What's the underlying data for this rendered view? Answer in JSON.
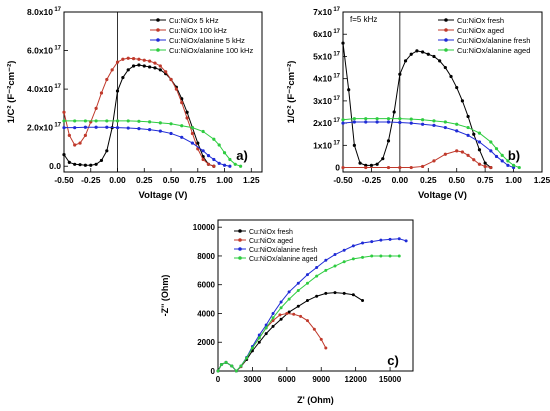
{
  "chart_data": [
    {
      "id": "a",
      "type": "line",
      "panel_label": "a)",
      "xlabel": "Voltage (V)",
      "ylabel": "1/C² (F⁻²cm⁻²)",
      "xlim": [
        -0.5,
        1.35
      ],
      "ylim": [
        -3e+16,
        8e+17
      ],
      "x_ticks": [
        -0.5,
        -0.25,
        0.0,
        0.25,
        0.5,
        0.75,
        1.0,
        1.25
      ],
      "x_tick_labels": [
        "-0.50",
        "-0.25",
        "0.00",
        "0.25",
        "0.50",
        "0.75",
        "1.00",
        "1.25"
      ],
      "y_ticks": [
        0.0,
        2e+17,
        4e+17,
        6e+17,
        8e+17
      ],
      "y_tick_labels": [
        "0.0",
        "2.0x10",
        "4.0x10",
        "6.0x10",
        "8.0x10"
      ],
      "y_tick_exps": [
        "",
        "17",
        "17",
        "17",
        "17"
      ],
      "legend_position": "top-center",
      "series": [
        {
          "name": "Cu:NiOx 5 kHz",
          "color": "#000000",
          "x": [
            -0.5,
            -0.45,
            -0.4,
            -0.35,
            -0.3,
            -0.25,
            -0.2,
            -0.15,
            -0.1,
            -0.05,
            0.0,
            0.05,
            0.1,
            0.15,
            0.2,
            0.25,
            0.3,
            0.35,
            0.4,
            0.45,
            0.5,
            0.55,
            0.6,
            0.65,
            0.7,
            0.75,
            0.8,
            0.85,
            0.9
          ],
          "y": [
            6e+16,
            2e+16,
            1e+16,
            8000000000000000.0,
            5000000000000000.0,
            5000000000000000.0,
            1e+16,
            3e+16,
            8e+16,
            2e+17,
            3.9e+17,
            4.6e+17,
            5e+17,
            5.2e+17,
            5.25e+17,
            5.2e+17,
            5.15e+17,
            5.1e+17,
            5e+17,
            4.8e+17,
            4.5e+17,
            4.1e+17,
            3.5e+17,
            2.8e+17,
            2e+17,
            1.2e+17,
            5e+16,
            1e+16,
            0.0
          ]
        },
        {
          "name": "Cu:NiOx 100 kHz",
          "color": "#c0392b",
          "x": [
            -0.5,
            -0.45,
            -0.4,
            -0.35,
            -0.3,
            -0.25,
            -0.2,
            -0.15,
            -0.1,
            -0.05,
            0.0,
            0.05,
            0.1,
            0.15,
            0.2,
            0.25,
            0.3,
            0.35,
            0.4,
            0.45,
            0.5,
            0.55,
            0.6,
            0.65,
            0.7,
            0.75,
            0.8,
            0.85,
            0.9
          ],
          "y": [
            2.8e+17,
            1.6e+17,
            1.1e+17,
            1.2e+17,
            1.6e+17,
            2.3e+17,
            3e+17,
            3.8e+17,
            4.5e+17,
            5e+17,
            5.4e+17,
            5.55e+17,
            5.6e+17,
            5.58e+17,
            5.55e+17,
            5.5e+17,
            5.45e+17,
            5.35e+17,
            5.2e+17,
            4.9e+17,
            4.5e+17,
            4e+17,
            3.3e+17,
            2.5e+17,
            1.7e+17,
            9e+16,
            3.5e+16,
            1e+16,
            0.0
          ]
        },
        {
          "name": "Cu:NiOx/alanine 5 kHz",
          "color": "#1f2bd6",
          "x": [
            -0.5,
            -0.4,
            -0.3,
            -0.2,
            -0.1,
            0.0,
            0.1,
            0.2,
            0.3,
            0.4,
            0.5,
            0.6,
            0.7,
            0.8,
            0.85,
            0.9,
            0.95,
            1.0,
            1.05
          ],
          "y": [
            2e+17,
            2e+17,
            2.02e+17,
            2.02e+17,
            2.02e+17,
            2e+17,
            1.98e+17,
            1.95e+17,
            1.9e+17,
            1.82e+17,
            1.7e+17,
            1.5e+17,
            1.2e+17,
            8e+16,
            5.5e+16,
            3.5e+16,
            1.5e+16,
            5000000000000000.0,
            0.0
          ]
        },
        {
          "name": "Cu:NiOx/alanine 100 kHz",
          "color": "#2ecc40",
          "x": [
            -0.5,
            -0.4,
            -0.3,
            -0.2,
            -0.1,
            0.0,
            0.1,
            0.2,
            0.3,
            0.4,
            0.5,
            0.6,
            0.7,
            0.8,
            0.9,
            0.95,
            1.0,
            1.05,
            1.1,
            1.15
          ],
          "y": [
            2.35e+17,
            2.35e+17,
            2.35e+17,
            2.35e+17,
            2.35e+17,
            2.35e+17,
            2.35e+17,
            2.33e+17,
            2.3e+17,
            2.25e+17,
            2.2e+17,
            2.1e+17,
            2e+17,
            1.8e+17,
            1.4e+17,
            1.1e+17,
            7e+16,
            3.5e+16,
            1e+16,
            0.0
          ]
        }
      ]
    },
    {
      "id": "b",
      "type": "line",
      "panel_label": "b)",
      "annotation": "f=5 kHz",
      "xlabel": "Voltage (V)",
      "ylabel": "1/C² (F⁻²cm⁻²)",
      "xlim": [
        -0.5,
        1.25
      ],
      "ylim": [
        -2e+16,
        7e+17
      ],
      "x_ticks": [
        -0.5,
        -0.25,
        0.0,
        0.25,
        0.5,
        0.75,
        1.0,
        1.25
      ],
      "x_tick_labels": [
        "-0.50",
        "-0.25",
        "0.00",
        "0.25",
        "0.50",
        "0.75",
        "1.00",
        "1.25"
      ],
      "y_ticks": [
        0,
        1e+17,
        2e+17,
        3e+17,
        4e+17,
        5e+17,
        6e+17,
        7e+17
      ],
      "y_tick_labels": [
        "0",
        "1x10",
        "2x10",
        "3x10",
        "4x10",
        "5x10",
        "6x10",
        "7x10"
      ],
      "y_tick_exps": [
        "",
        "17",
        "17",
        "17",
        "17",
        "17",
        "17",
        "17"
      ],
      "legend_position": "top-center",
      "series": [
        {
          "name": "Cu:NiOx fresh",
          "color": "#000000",
          "x": [
            -0.5,
            -0.45,
            -0.4,
            -0.35,
            -0.3,
            -0.25,
            -0.2,
            -0.15,
            -0.1,
            -0.05,
            0.0,
            0.05,
            0.1,
            0.15,
            0.2,
            0.25,
            0.3,
            0.35,
            0.4,
            0.45,
            0.5,
            0.55,
            0.6,
            0.65,
            0.7,
            0.75,
            0.8
          ],
          "y": [
            5.6e+17,
            3.5e+17,
            1e+17,
            2e+16,
            1e+16,
            1e+16,
            1.5e+16,
            4e+16,
            1.2e+17,
            2.5e+17,
            4.2e+17,
            4.8e+17,
            5.1e+17,
            5.25e+17,
            5.2e+17,
            5.1e+17,
            5e+17,
            4.8e+17,
            4.5e+17,
            4.1e+17,
            3.6e+17,
            3e+17,
            2.3e+17,
            1.5e+17,
            8e+16,
            2e+16,
            0.0
          ]
        },
        {
          "name": "Cu:NiOx aged",
          "color": "#c0392b",
          "x": [
            -0.5,
            -0.3,
            -0.1,
            0.0,
            0.1,
            0.2,
            0.3,
            0.4,
            0.5,
            0.55,
            0.6,
            0.65,
            0.7,
            0.75,
            0.8
          ],
          "y": [
            0.0,
            0.0,
            0.0,
            0.0,
            0.0,
            5000000000000000.0,
            3e+16,
            6e+16,
            7.5e+16,
            7e+16,
            5.5e+16,
            3.5e+16,
            1.5e+16,
            5000000000000000.0,
            0.0
          ]
        },
        {
          "name": "Cu:NiOx/alanine fresh",
          "color": "#1f2bd6",
          "x": [
            -0.5,
            -0.4,
            -0.3,
            -0.2,
            -0.1,
            0.0,
            0.1,
            0.2,
            0.3,
            0.4,
            0.5,
            0.6,
            0.7,
            0.8,
            0.85,
            0.9,
            0.95,
            1.0
          ],
          "y": [
            2e+17,
            2.05e+17,
            2.05e+17,
            2.05e+17,
            2.05e+17,
            2.03e+17,
            2e+17,
            1.95e+17,
            1.9e+17,
            1.8e+17,
            1.65e+17,
            1.45e+17,
            1.15e+17,
            7.5e+16,
            5e+16,
            3e+16,
            1e+16,
            0.0
          ]
        },
        {
          "name": "Cu:NiOx/alanine aged",
          "color": "#2ecc40",
          "x": [
            -0.5,
            -0.4,
            -0.3,
            -0.2,
            -0.1,
            0.0,
            0.1,
            0.2,
            0.3,
            0.4,
            0.5,
            0.6,
            0.7,
            0.8,
            0.85,
            0.9,
            0.95,
            1.0,
            1.05
          ],
          "y": [
            2.15e+17,
            2.2e+17,
            2.2e+17,
            2.2e+17,
            2.2e+17,
            2.2e+17,
            2.18e+17,
            2.15e+17,
            2.1e+17,
            2.05e+17,
            1.95e+17,
            1.8e+17,
            1.55e+17,
            1.15e+17,
            8.5e+16,
            5.5e+16,
            3e+16,
            1e+16,
            0.0
          ]
        }
      ]
    },
    {
      "id": "c",
      "type": "scatter",
      "panel_label": "c)",
      "xlabel": "Z' (Ohm)",
      "ylabel": "-Z'' (Ohm)",
      "xlim": [
        0,
        17000
      ],
      "ylim": [
        0,
        10500
      ],
      "x_ticks": [
        0,
        3000,
        6000,
        9000,
        12000,
        15000
      ],
      "x_tick_labels": [
        "0",
        "3000",
        "6000",
        "9000",
        "12000",
        "15000"
      ],
      "y_ticks": [
        0,
        2000,
        4000,
        6000,
        8000,
        10000
      ],
      "y_tick_labels": [
        "0",
        "2000",
        "4000",
        "6000",
        "8000",
        "10000"
      ],
      "legend_position": "top-left",
      "series": [
        {
          "name": "Cu:NiOx fresh",
          "color": "#000000",
          "x": [
            0,
            300,
            700,
            1200,
            1600,
            2000,
            2500,
            3000,
            3600,
            4200,
            4800,
            5500,
            6200,
            7000,
            7800,
            8600,
            9400,
            10200,
            11000,
            11800,
            12600
          ],
          "y": [
            0,
            450,
            600,
            350,
            0,
            300,
            800,
            1400,
            2000,
            2600,
            3100,
            3600,
            4100,
            4500,
            4900,
            5200,
            5400,
            5450,
            5400,
            5300,
            4900
          ]
        },
        {
          "name": "Cu:NiOx aged",
          "color": "#c0392b",
          "x": [
            0,
            300,
            700,
            1200,
            1600,
            2000,
            2500,
            3000,
            3600,
            4200,
            4800,
            5400,
            6000,
            6600,
            7200,
            7800,
            8400,
            9000,
            9400
          ],
          "y": [
            0,
            450,
            600,
            350,
            0,
            300,
            900,
            1600,
            2300,
            3000,
            3500,
            3900,
            4000,
            3950,
            3800,
            3500,
            2900,
            2200,
            1600
          ]
        },
        {
          "name": "Cu:NiOx/alanine fresh",
          "color": "#1f2bd6",
          "x": [
            0,
            300,
            700,
            1200,
            1600,
            2000,
            2500,
            3000,
            3600,
            4200,
            4800,
            5500,
            6200,
            7000,
            7800,
            8600,
            9400,
            10200,
            11000,
            11800,
            12600,
            13400,
            14200,
            15000,
            15800,
            16400
          ],
          "y": [
            0,
            450,
            600,
            350,
            0,
            350,
            950,
            1700,
            2500,
            3200,
            4000,
            4800,
            5500,
            6100,
            6700,
            7200,
            7700,
            8100,
            8400,
            8700,
            8900,
            9000,
            9100,
            9150,
            9200,
            9050
          ]
        },
        {
          "name": "Cu:NiOx/alanine aged",
          "color": "#2ecc40",
          "x": [
            0,
            300,
            700,
            1200,
            1600,
            2000,
            2500,
            3000,
            3600,
            4200,
            4800,
            5500,
            6200,
            7000,
            7800,
            8600,
            9400,
            10200,
            11000,
            11800,
            12600,
            13400,
            14200,
            15000,
            15800
          ],
          "y": [
            0,
            450,
            600,
            350,
            0,
            350,
            900,
            1600,
            2300,
            3000,
            3700,
            4400,
            5000,
            5600,
            6100,
            6600,
            7000,
            7300,
            7600,
            7800,
            7900,
            8000,
            8000,
            8000,
            8000
          ]
        }
      ]
    }
  ]
}
